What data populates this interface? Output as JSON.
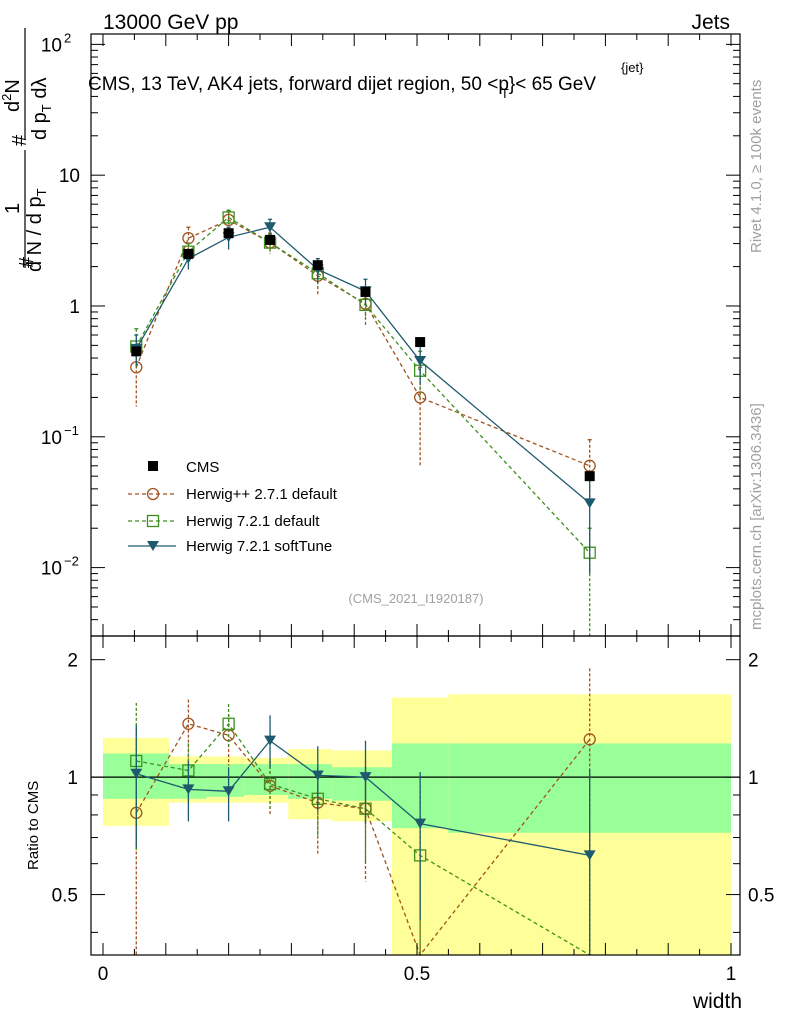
{
  "header": {
    "left": "13000 GeV pp",
    "right": "Jets",
    "title": "CMS, 13 TeV, AK4 jets, forward dijet region, 50 <p",
    "title_sup": "{jet}",
    "title_sub": "T",
    "title_tail": "}< 65 GeV",
    "analysis_id": "(CMS_2021_I1920187)"
  },
  "side_labels": {
    "rivet": "Rivet 4.1.0, ≥ 100k events",
    "mcplots": "mcplots.cern.ch [arXiv:1306.3436]"
  },
  "axes": {
    "upper_ylabel": "1/N dN/dp_T d²N/(dp_T dλ)",
    "upper_ylabel_parts": {
      "num1": "1",
      "den1": "d N / d p",
      "den1_sub": "T",
      "num2": "d",
      "num2_sup": "2",
      "num2_tail": "N",
      "den2": "d p",
      "den2_sub": "T",
      "den2_tail": " dλ",
      "hash": "#"
    },
    "lower_ylabel": "Ratio to CMS",
    "xlabel": "width",
    "upper_yticks": [
      {
        "value": 0.01,
        "base": "10",
        "exp": "−2"
      },
      {
        "value": 0.1,
        "base": "10",
        "exp": "−1"
      },
      {
        "value": 1,
        "base": "1",
        "exp": ""
      },
      {
        "value": 10,
        "base": "10",
        "exp": ""
      },
      {
        "value": 100,
        "base": "10",
        "exp": "2"
      }
    ],
    "lower_yticks": [
      {
        "value": 0.5,
        "label": "0.5"
      },
      {
        "value": 1,
        "label": "1"
      },
      {
        "value": 2,
        "label": "2"
      }
    ],
    "xticks": [
      {
        "value": 0,
        "label": "0"
      },
      {
        "value": 0.5,
        "label": "0.5"
      },
      {
        "value": 1,
        "label": "1"
      }
    ]
  },
  "legend": {
    "entries": [
      {
        "key": "cms",
        "label": "CMS"
      },
      {
        "key": "hpp",
        "label": "Herwig++ 2.7.1 default"
      },
      {
        "key": "h721",
        "label": "Herwig 7.2.1 default"
      },
      {
        "key": "h721s",
        "label": "Herwig 7.2.1 softTune"
      }
    ]
  },
  "colors": {
    "cms": "#000000",
    "hpp": "#a0521e",
    "h721": "#3f8f1f",
    "h721s": "#1e5a6e",
    "band_inner": "#99ff99",
    "band_outer": "#ffff99"
  },
  "chart_data": {
    "type": "line",
    "xlim": [
      0,
      1
    ],
    "upper_ylim": [
      0.003,
      120
    ],
    "upper_yscale": "log",
    "lower_ylim": [
      0.35,
      2.3
    ],
    "lower_yscale": "log",
    "bins": [
      [
        0.0,
        0.105
      ],
      [
        0.105,
        0.165
      ],
      [
        0.165,
        0.225
      ],
      [
        0.225,
        0.295
      ],
      [
        0.295,
        0.365
      ],
      [
        0.365,
        0.46
      ],
      [
        0.46,
        0.55
      ],
      [
        0.55,
        1.0
      ]
    ],
    "x": [
      0.053,
      0.136,
      0.2,
      0.266,
      0.342,
      0.418,
      0.505,
      0.775
    ],
    "cms": [
      0.45,
      2.5,
      3.6,
      3.2,
      2.05,
      1.28,
      0.53,
      0.05
    ],
    "band_inner": [
      [
        0.88,
        1.15
      ],
      [
        0.88,
        1.08
      ],
      [
        0.89,
        1.08
      ],
      [
        0.9,
        1.08
      ],
      [
        0.88,
        1.08
      ],
      [
        0.87,
        1.06
      ],
      [
        0.74,
        1.22
      ],
      [
        0.72,
        1.22
      ]
    ],
    "band_outer": [
      [
        0.75,
        1.26
      ],
      [
        0.86,
        1.13
      ],
      [
        0.86,
        1.13
      ],
      [
        0.86,
        1.12
      ],
      [
        0.78,
        1.18
      ],
      [
        0.77,
        1.17
      ],
      [
        0.25,
        1.6
      ],
      [
        0.25,
        1.63
      ]
    ],
    "series": [
      {
        "key": "hpp",
        "name": "Herwig++ 2.7.1 default",
        "values": [
          0.34,
          3.3,
          4.55,
          3.05,
          1.7,
          1.04,
          0.2,
          0.06
        ],
        "err_low": [
          0.17,
          2.2,
          3.8,
          2.5,
          1.2,
          0.7,
          0.06,
          0.03
        ],
        "err_high": [
          0.5,
          4.0,
          5.3,
          3.6,
          2.2,
          1.4,
          0.34,
          0.095
        ],
        "ratio": [
          0.81,
          1.37,
          1.28,
          0.95,
          0.86,
          0.83,
          0.33,
          1.25
        ],
        "ratio_low": [
          0.3,
          1.0,
          1.07,
          0.8,
          0.63,
          0.54,
          0.3,
          0.3
        ],
        "ratio_high": [
          1.13,
          1.58,
          1.45,
          1.1,
          1.07,
          1.1,
          0.6,
          1.9
        ]
      },
      {
        "key": "h721",
        "name": "Herwig 7.2.1 default",
        "values": [
          0.49,
          2.6,
          4.75,
          3.05,
          1.78,
          1.02,
          0.32,
          0.013
        ],
        "err_low": [
          0.33,
          2.2,
          4.1,
          2.6,
          1.4,
          0.8,
          0.2,
          0.0025
        ],
        "err_high": [
          0.67,
          3.0,
          5.4,
          3.5,
          2.2,
          1.25,
          0.45,
          0.02
        ],
        "ratio": [
          1.1,
          1.04,
          1.37,
          0.96,
          0.88,
          0.83,
          0.63,
          0.26
        ],
        "ratio_low": [
          0.65,
          0.85,
          1.2,
          0.82,
          0.7,
          0.6,
          0.3,
          0.3
        ],
        "ratio_high": [
          1.55,
          1.22,
          1.54,
          1.1,
          1.06,
          1.05,
          0.95,
          0.6
        ]
      },
      {
        "key": "h721s",
        "name": "Herwig 7.2.1 softTune",
        "values": [
          0.47,
          2.3,
          3.35,
          4.0,
          1.9,
          1.3,
          0.38,
          0.031
        ],
        "err_low": [
          0.35,
          1.9,
          2.7,
          3.4,
          1.5,
          1.0,
          0.25,
          0.009
        ],
        "err_high": [
          0.6,
          2.7,
          4.0,
          4.6,
          2.3,
          1.6,
          0.5,
          0.052
        ],
        "ratio": [
          1.02,
          0.93,
          0.92,
          1.24,
          1.01,
          1.0,
          0.76,
          0.63
        ],
        "ratio_low": [
          0.66,
          0.77,
          0.77,
          1.06,
          0.82,
          0.76,
          0.43,
          0.3
        ],
        "ratio_high": [
          1.36,
          1.1,
          1.06,
          1.44,
          1.2,
          1.24,
          1.03,
          1.05
        ]
      }
    ]
  }
}
